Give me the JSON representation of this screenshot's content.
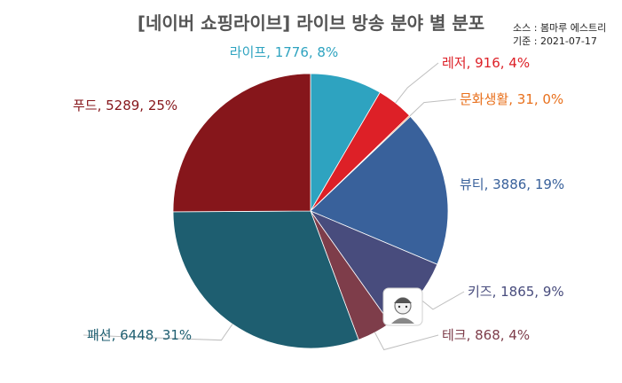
{
  "chart_data": {
    "type": "pie",
    "title": "[네이버 쇼핑라이브] 라이브 방송 분야 별 분포",
    "source": "소스 : 봄마루 에스트리",
    "date": "기준 : 2021-07-17",
    "slices": [
      {
        "label": "라이프",
        "value": 1776,
        "percent": "8%",
        "color": "#2ea3c0",
        "text_color": "#2ea3c0"
      },
      {
        "label": "레저",
        "value": 916,
        "percent": "4%",
        "color": "#dd2027",
        "text_color": "#dd2027"
      },
      {
        "label": "문화생활",
        "value": 31,
        "percent": "0%",
        "color": "#e8701c",
        "text_color": "#e8701c"
      },
      {
        "label": "뷰티",
        "value": 3886,
        "percent": "19%",
        "color": "#39619b",
        "text_color": "#39619b"
      },
      {
        "label": "키즈",
        "value": 1865,
        "percent": "9%",
        "color": "#484c7d",
        "text_color": "#484c7d"
      },
      {
        "label": "테크",
        "value": 868,
        "percent": "4%",
        "color": "#7e3d4a",
        "text_color": "#7e3d4a"
      },
      {
        "label": "패션",
        "value": 6448,
        "percent": "31%",
        "color": "#1e5e70",
        "text_color": "#1e5e70"
      },
      {
        "label": "푸드",
        "value": 5289,
        "percent": "25%",
        "color": "#86161b",
        "text_color": "#86161b"
      }
    ]
  }
}
